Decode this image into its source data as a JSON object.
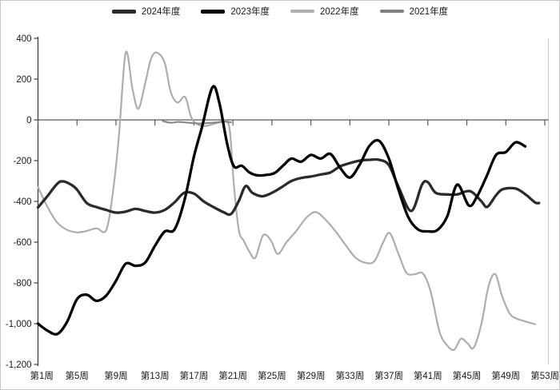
{
  "legend": {
    "items": [
      {
        "label": "2024年度",
        "color": "#2b2b2b",
        "swatch_height": 5
      },
      {
        "label": "2023年度",
        "color": "#010101",
        "swatch_height": 5
      },
      {
        "label": "2022年度",
        "color": "#b0b0b0",
        "swatch_height": 4
      },
      {
        "label": "2021年度",
        "color": "#7f7f7f",
        "swatch_height": 4
      }
    ]
  },
  "chart_data": {
    "type": "line",
    "title": "",
    "xlabel": "",
    "ylabel": "",
    "x_axis": {
      "tick_labels": [
        "第1周",
        "第5周",
        "第9周",
        "第13周",
        "第17周",
        "第21周",
        "第25周",
        "第29周",
        "第33周",
        "第37周",
        "第41周",
        "第45周",
        "第49周",
        "第53周"
      ],
      "tick_weeks": [
        1,
        5,
        9,
        13,
        17,
        21,
        25,
        29,
        33,
        37,
        41,
        45,
        49,
        53
      ],
      "range": [
        1,
        53
      ]
    },
    "y_axis": {
      "tick_labels": [
        "400",
        "200",
        "0",
        "-200",
        "-400",
        "-600",
        "-800",
        "-1,000",
        "-1,200"
      ],
      "tick_values": [
        400,
        200,
        0,
        -200,
        -400,
        -600,
        -800,
        -1000,
        -1200
      ],
      "range": [
        -1200,
        400
      ],
      "zero_baseline": true
    },
    "series": [
      {
        "name": "2022年度",
        "color": "#adadad",
        "stroke_width": 2.2,
        "points": [
          [
            1,
            -330
          ],
          [
            2,
            -430
          ],
          [
            3,
            -505
          ],
          [
            4,
            -540
          ],
          [
            5,
            -552
          ],
          [
            6,
            -545
          ],
          [
            7,
            -532
          ],
          [
            8,
            -540
          ],
          [
            8.7,
            -350
          ],
          [
            9.3,
            -80
          ],
          [
            10,
            330
          ],
          [
            10.7,
            150
          ],
          [
            11.3,
            55
          ],
          [
            12,
            180
          ],
          [
            12.6,
            300
          ],
          [
            13.2,
            330
          ],
          [
            14,
            280
          ],
          [
            14.6,
            140
          ],
          [
            15.3,
            85
          ],
          [
            16.1,
            112
          ],
          [
            16.7,
            15
          ],
          [
            17.3,
            -20
          ],
          [
            18.1,
            -30
          ],
          [
            18.9,
            -22
          ],
          [
            19.6,
            -12
          ],
          [
            20.3,
            -6
          ],
          [
            20.7,
            -60
          ],
          [
            21.1,
            -320
          ],
          [
            21.6,
            -540
          ],
          [
            22.1,
            -592
          ],
          [
            22.7,
            -648
          ],
          [
            23.3,
            -676
          ],
          [
            24.1,
            -566
          ],
          [
            24.9,
            -592
          ],
          [
            25.6,
            -658
          ],
          [
            26.5,
            -600
          ],
          [
            27.5,
            -545
          ],
          [
            28.5,
            -482
          ],
          [
            29.5,
            -452
          ],
          [
            30.5,
            -490
          ],
          [
            31.5,
            -545
          ],
          [
            32.5,
            -610
          ],
          [
            33.5,
            -672
          ],
          [
            34.5,
            -700
          ],
          [
            35.5,
            -694
          ],
          [
            36.4,
            -602
          ],
          [
            37.1,
            -556
          ],
          [
            38,
            -660
          ],
          [
            38.8,
            -750
          ],
          [
            39.6,
            -758
          ],
          [
            40.5,
            -754
          ],
          [
            41.3,
            -845
          ],
          [
            42.2,
            -1040
          ],
          [
            43,
            -1108
          ],
          [
            43.7,
            -1128
          ],
          [
            44.4,
            -1074
          ],
          [
            45.1,
            -1098
          ],
          [
            45.7,
            -1118
          ],
          [
            46.5,
            -1000
          ],
          [
            47.2,
            -822
          ],
          [
            47.9,
            -756
          ],
          [
            48.6,
            -862
          ],
          [
            49.4,
            -950
          ],
          [
            50.1,
            -975
          ],
          [
            50.8,
            -986
          ],
          [
            51.4,
            -995
          ],
          [
            52,
            -1003
          ]
        ]
      },
      {
        "name": "2021年度",
        "color": "#878787",
        "stroke_width": 2.1,
        "points": [
          [
            13.8,
            -6
          ],
          [
            14.6,
            -14
          ],
          [
            15.4,
            -10
          ],
          [
            16.2,
            -13
          ],
          [
            17,
            -16
          ],
          [
            17.8,
            -18
          ],
          [
            18.6,
            -15
          ],
          [
            19.4,
            -12
          ],
          [
            20.2,
            -9
          ],
          [
            20.8,
            -12
          ]
        ]
      },
      {
        "name": "2024年度",
        "color": "#2b2b2b",
        "stroke_width": 3.3,
        "points": [
          [
            1,
            -430
          ],
          [
            2,
            -372
          ],
          [
            3,
            -312
          ],
          [
            3.6,
            -302
          ],
          [
            4.4,
            -318
          ],
          [
            5,
            -342
          ],
          [
            6,
            -408
          ],
          [
            7,
            -428
          ],
          [
            8,
            -442
          ],
          [
            9,
            -455
          ],
          [
            10,
            -450
          ],
          [
            11,
            -437
          ],
          [
            12,
            -447
          ],
          [
            13,
            -455
          ],
          [
            14,
            -442
          ],
          [
            15,
            -405
          ],
          [
            16,
            -358
          ],
          [
            17,
            -362
          ],
          [
            18,
            -400
          ],
          [
            19,
            -428
          ],
          [
            20,
            -452
          ],
          [
            20.8,
            -462
          ],
          [
            21.6,
            -398
          ],
          [
            22.3,
            -325
          ],
          [
            23,
            -358
          ],
          [
            24,
            -375
          ],
          [
            25,
            -358
          ],
          [
            26,
            -330
          ],
          [
            27,
            -300
          ],
          [
            28,
            -285
          ],
          [
            29,
            -278
          ],
          [
            30,
            -268
          ],
          [
            31,
            -258
          ],
          [
            32,
            -228
          ],
          [
            33,
            -212
          ],
          [
            34,
            -200
          ],
          [
            35,
            -196
          ],
          [
            36,
            -196
          ],
          [
            37,
            -222
          ],
          [
            38,
            -330
          ],
          [
            39.3,
            -447
          ],
          [
            40.4,
            -318
          ],
          [
            41,
            -306
          ],
          [
            41.8,
            -358
          ],
          [
            43,
            -366
          ],
          [
            44,
            -366
          ],
          [
            45,
            -350
          ],
          [
            45.6,
            -356
          ],
          [
            46.5,
            -400
          ],
          [
            47.1,
            -427
          ],
          [
            48,
            -370
          ],
          [
            48.7,
            -340
          ],
          [
            50,
            -337
          ],
          [
            51,
            -365
          ],
          [
            52,
            -405
          ],
          [
            52.4,
            -408
          ]
        ]
      },
      {
        "name": "2023年度",
        "color": "#010101",
        "stroke_width": 3.3,
        "points": [
          [
            1,
            -1000
          ],
          [
            2,
            -1035
          ],
          [
            3,
            -1050
          ],
          [
            4,
            -990
          ],
          [
            5,
            -880
          ],
          [
            6,
            -858
          ],
          [
            7,
            -888
          ],
          [
            8,
            -862
          ],
          [
            9,
            -790
          ],
          [
            10,
            -706
          ],
          [
            11,
            -716
          ],
          [
            12,
            -700
          ],
          [
            13,
            -618
          ],
          [
            14,
            -548
          ],
          [
            15,
            -538
          ],
          [
            16,
            -400
          ],
          [
            17,
            -180
          ],
          [
            17.8,
            -40
          ],
          [
            18.9,
            160
          ],
          [
            19.6,
            85
          ],
          [
            20.4,
            -115
          ],
          [
            21.1,
            -228
          ],
          [
            21.9,
            -225
          ],
          [
            22.7,
            -258
          ],
          [
            23.5,
            -272
          ],
          [
            24.5,
            -270
          ],
          [
            25.3,
            -260
          ],
          [
            26.2,
            -222
          ],
          [
            27,
            -190
          ],
          [
            28,
            -205
          ],
          [
            29,
            -172
          ],
          [
            30,
            -190
          ],
          [
            31,
            -167
          ],
          [
            32,
            -235
          ],
          [
            33,
            -283
          ],
          [
            34,
            -220
          ],
          [
            35,
            -128
          ],
          [
            36,
            -103
          ],
          [
            37,
            -190
          ],
          [
            38,
            -345
          ],
          [
            39,
            -478
          ],
          [
            40,
            -538
          ],
          [
            41,
            -547
          ],
          [
            42,
            -540
          ],
          [
            43,
            -472
          ],
          [
            44,
            -318
          ],
          [
            45.2,
            -420
          ],
          [
            46,
            -380
          ],
          [
            47,
            -280
          ],
          [
            48,
            -172
          ],
          [
            49,
            -158
          ],
          [
            50,
            -110
          ],
          [
            51,
            -130
          ]
        ]
      }
    ],
    "legend_position": "top",
    "grid": false
  }
}
